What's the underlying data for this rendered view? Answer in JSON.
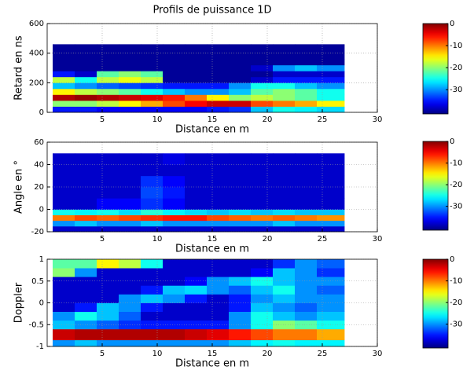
{
  "chart_data": [
    {
      "type": "heatmap",
      "title": "Profils de puissance 1D",
      "xlabel": "Distance en m",
      "ylabel": "Retard en ns",
      "xbins": [
        0.5,
        2.5,
        4.5,
        6.5,
        8.5,
        10.5,
        12.5,
        14.5,
        16.5,
        18.5,
        20.5,
        22.5,
        24.5,
        27
      ],
      "ybins": [
        0,
        40,
        80,
        120,
        160,
        200,
        240,
        280,
        320,
        360,
        400,
        460
      ],
      "values": [
        [
          -35,
          -35,
          -36,
          -36,
          -36,
          -36,
          -36,
          -35,
          -34,
          -28,
          -25,
          -26,
          -27
        ],
        [
          -20,
          -20,
          -18,
          -15,
          -12,
          -8,
          -5,
          -3,
          -3,
          -8,
          -10,
          -12,
          -15
        ],
        [
          -2,
          -1,
          -2,
          -3,
          -4,
          -6,
          -10,
          -15,
          -20,
          -18,
          -20,
          -22,
          -25
        ],
        [
          -15,
          -18,
          -20,
          -22,
          -25,
          -28,
          -30,
          -30,
          -28,
          -22,
          -20,
          -22,
          -25
        ],
        [
          -28,
          -30,
          -32,
          -33,
          -34,
          -35,
          -35,
          -35,
          -30,
          -25,
          -25,
          -28,
          -30
        ],
        [
          -18,
          -25,
          -18,
          -16,
          -18,
          -40,
          -40,
          -40,
          -40,
          -38,
          -35,
          -35,
          -35
        ],
        [
          -35,
          -38,
          -22,
          -20,
          -22,
          -40,
          -40,
          -40,
          -40,
          -40,
          -38,
          -38,
          -38
        ],
        [
          -40,
          -40,
          -40,
          -40,
          -40,
          -40,
          -40,
          -40,
          -40,
          -38,
          -30,
          -28,
          -30
        ],
        [
          -40,
          -40,
          -40,
          -40,
          -40,
          -40,
          -40,
          -40,
          -40,
          -40,
          -40,
          -40,
          -40
        ],
        [
          -40,
          -40,
          -40,
          -40,
          -40,
          -40,
          -40,
          -40,
          -40,
          -40,
          -40,
          -40,
          -40
        ],
        [
          -40,
          -40,
          -40,
          -40,
          -40,
          -40,
          -40,
          -40,
          -40,
          -40,
          -40,
          -40,
          -40
        ]
      ],
      "xlim": [
        0,
        30
      ],
      "ylim": [
        0,
        600
      ],
      "xticks": [
        5,
        10,
        15,
        20,
        25,
        30
      ],
      "yticks": [
        0,
        200,
        400,
        600
      ],
      "grid": true,
      "colormap": "jet",
      "clim": [
        -41,
        0
      ],
      "colorbar_ticks": [
        0,
        -10,
        -20,
        -30
      ]
    },
    {
      "type": "heatmap",
      "xlabel": "Distance en m",
      "ylabel": "Angle en °",
      "xbins": [
        0.5,
        2.5,
        4.5,
        6.5,
        8.5,
        10.5,
        12.5,
        14.5,
        16.5,
        18.5,
        20.5,
        22.5,
        24.5,
        27
      ],
      "ybins": [
        -20,
        -15,
        -10,
        -5,
        0,
        10,
        20,
        30,
        40,
        50
      ],
      "values": [
        [
          -38,
          -38,
          -38,
          -38,
          -38,
          -38,
          -38,
          -38,
          -38,
          -38,
          -38,
          -38,
          -38
        ],
        [
          -30,
          -28,
          -30,
          -30,
          -28,
          -30,
          -30,
          -30,
          -30,
          -30,
          -28,
          -30,
          -30
        ],
        [
          -10,
          -8,
          -9,
          -8,
          -7,
          -6,
          -6,
          -8,
          -9,
          -10,
          -9,
          -10,
          -11
        ],
        [
          -25,
          -26,
          -25,
          -27,
          -24,
          -26,
          -27,
          -28,
          -27,
          -28,
          -27,
          -28,
          -28
        ],
        [
          -38,
          -38,
          -36,
          -36,
          -34,
          -36,
          -38,
          -38,
          -38,
          -38,
          -38,
          -38,
          -38
        ],
        [
          -38,
          -38,
          -38,
          -38,
          -33,
          -35,
          -38,
          -38,
          -38,
          -38,
          -38,
          -38,
          -38
        ],
        [
          -38,
          -38,
          -38,
          -38,
          -34,
          -36,
          -38,
          -38,
          -38,
          -38,
          -38,
          -38,
          -38
        ],
        [
          -38,
          -38,
          -38,
          -38,
          -38,
          -38,
          -38,
          -38,
          -38,
          -38,
          -38,
          -38,
          -38
        ],
        [
          -38,
          -38,
          -38,
          -38,
          -38,
          -37,
          -38,
          -38,
          -38,
          -38,
          -38,
          -38,
          -38
        ]
      ],
      "xlim": [
        0,
        30
      ],
      "ylim": [
        -20,
        60
      ],
      "xticks": [
        5,
        10,
        15,
        20,
        25,
        30
      ],
      "yticks": [
        -20,
        0,
        20,
        40,
        60
      ],
      "grid": true,
      "colormap": "jet",
      "clim": [
        -41,
        0
      ],
      "colorbar_ticks": [
        0,
        -10,
        -20,
        -30
      ]
    },
    {
      "type": "heatmap",
      "xlabel": "Distance en m",
      "ylabel": "Doppler",
      "xbins": [
        0.5,
        2.5,
        4.5,
        6.5,
        8.5,
        10.5,
        12.5,
        14.5,
        16.5,
        18.5,
        20.5,
        22.5,
        24.5,
        27
      ],
      "ybins": [
        -1,
        -0.85,
        -0.6,
        -0.4,
        -0.2,
        0,
        0.2,
        0.4,
        0.6,
        0.8,
        1
      ],
      "values": [
        [
          -30,
          -28,
          -30,
          -30,
          -30,
          -30,
          -30,
          -30,
          -28,
          -26,
          -25,
          -26,
          -26
        ],
        [
          -3,
          -2,
          -2,
          -2,
          -2,
          -2,
          -3,
          -4,
          -6,
          -8,
          -10,
          -10,
          -12
        ],
        [
          -28,
          -30,
          -32,
          -34,
          -35,
          -35,
          -35,
          -35,
          -30,
          -25,
          -20,
          -22,
          -25
        ],
        [
          -30,
          -25,
          -28,
          -32,
          -38,
          -38,
          -38,
          -38,
          -30,
          -25,
          -28,
          -30,
          -28
        ],
        [
          -38,
          -35,
          -28,
          -30,
          -35,
          -38,
          -38,
          -38,
          -35,
          -28,
          -30,
          -32,
          -30
        ],
        [
          -38,
          -38,
          -38,
          -30,
          -28,
          -30,
          -35,
          -38,
          -35,
          -30,
          -28,
          -30,
          -30
        ],
        [
          -38,
          -38,
          -38,
          -38,
          -35,
          -28,
          -27,
          -30,
          -32,
          -28,
          -25,
          -30,
          -32
        ],
        [
          -38,
          -38,
          -38,
          -38,
          -38,
          -38,
          -36,
          -30,
          -28,
          -25,
          -28,
          -30,
          -30
        ],
        [
          -20,
          -30,
          -38,
          -38,
          -38,
          -38,
          -38,
          -38,
          -38,
          -36,
          -28,
          -30,
          -34
        ],
        [
          -22,
          -22,
          -15,
          -18,
          -25,
          -38,
          -38,
          -38,
          -38,
          -38,
          -34,
          -30,
          -32
        ]
      ],
      "xlim": [
        0,
        30
      ],
      "ylim": [
        -1,
        1
      ],
      "xticks": [
        5,
        10,
        15,
        20,
        25,
        30
      ],
      "yticks": [
        -1,
        -0.5,
        0,
        0.5,
        1
      ],
      "grid": true,
      "colormap": "jet",
      "clim": [
        -41,
        0
      ],
      "colorbar_ticks": [
        0,
        -10,
        -20,
        -30
      ]
    }
  ]
}
